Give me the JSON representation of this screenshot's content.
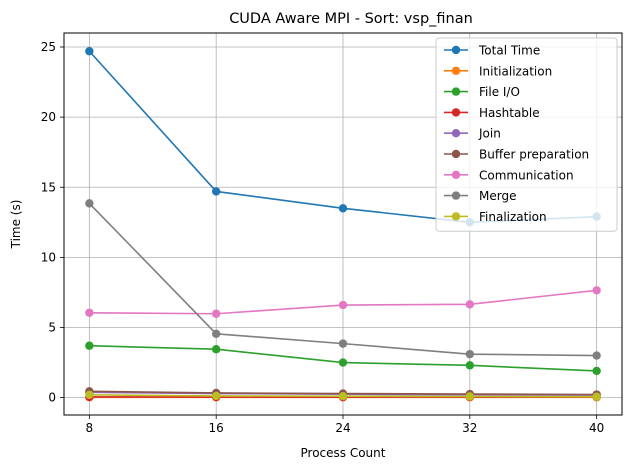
{
  "chart_data": {
    "type": "line",
    "title": "CUDA Aware MPI - Sort: vsp_finan",
    "xlabel": "Process Count",
    "ylabel": "Time (s)",
    "x": [
      8,
      16,
      24,
      32,
      40
    ],
    "xlim": [
      6.4,
      41.6
    ],
    "ylim": [
      -1.24,
      26.0
    ],
    "x_ticks": [
      8,
      16,
      24,
      32,
      40
    ],
    "y_ticks": [
      0,
      5,
      10,
      15,
      20,
      25
    ],
    "grid": true,
    "legend_position": "top-right",
    "series": [
      {
        "name": "Total Time",
        "color": "#1f77b4",
        "values": [
          24.7,
          14.7,
          13.5,
          12.5,
          12.9
        ]
      },
      {
        "name": "Initialization",
        "color": "#ff7f0e",
        "values": [
          0.02,
          0.02,
          0.02,
          0.02,
          0.02
        ]
      },
      {
        "name": "File I/O",
        "color": "#2ca02c",
        "values": [
          3.7,
          3.45,
          2.5,
          2.3,
          1.9
        ]
      },
      {
        "name": "Hashtable",
        "color": "#d62728",
        "values": [
          0.05,
          0.04,
          0.04,
          0.04,
          0.04
        ]
      },
      {
        "name": "Join",
        "color": "#9467bd",
        "values": [
          0.38,
          0.29,
          0.24,
          0.2,
          0.18
        ]
      },
      {
        "name": "Buffer preparation",
        "color": "#8c564b",
        "values": [
          0.45,
          0.33,
          0.29,
          0.25,
          0.22
        ]
      },
      {
        "name": "Communication",
        "color": "#e377c2",
        "values": [
          6.05,
          5.98,
          6.6,
          6.65,
          7.65
        ]
      },
      {
        "name": "Merge",
        "color": "#7f7f7f",
        "values": [
          13.85,
          4.55,
          3.85,
          3.1,
          3.0
        ]
      },
      {
        "name": "Finalization",
        "color": "#bcbd22",
        "values": [
          0.2,
          0.12,
          0.1,
          0.08,
          0.06
        ]
      }
    ]
  }
}
